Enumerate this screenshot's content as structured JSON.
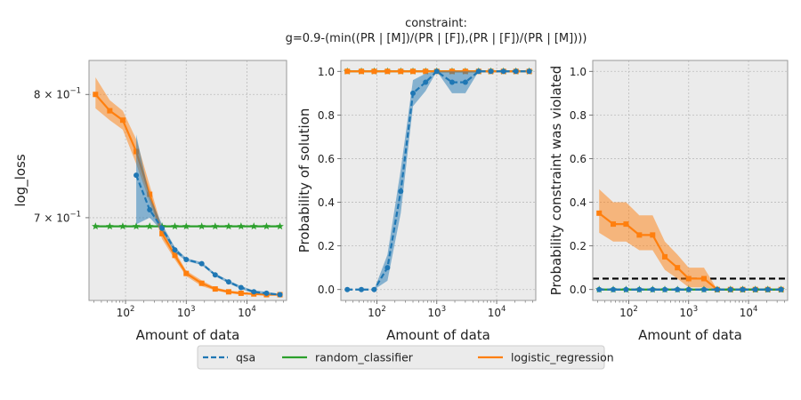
{
  "title_lines": [
    "constraint:",
    "g=0.9-(min((PR | [M])/(PR | [F]),(PR | [F])/(PR | [M])))"
  ],
  "colors": {
    "qsa": "#1f77b4",
    "random_classifier": "#2ca02c",
    "logistic_regression": "#ff7f0e",
    "threshold": "#000000"
  },
  "legend": [
    {
      "key": "qsa",
      "label": "qsa",
      "dash": true
    },
    {
      "key": "random_classifier",
      "label": "random_classifier",
      "dash": false
    },
    {
      "key": "logistic_regression",
      "label": "logistic_regression",
      "dash": false
    }
  ],
  "chart_data": [
    {
      "type": "line",
      "xscale": "log",
      "yscale": "log",
      "xlabel": "Amount of data",
      "ylabel": "log_loss",
      "xlim": [
        25,
        45000
      ],
      "ylim": [
        0.64,
        0.83
      ],
      "xticks": [
        {
          "v": 100,
          "b": "10",
          "e": "2"
        },
        {
          "v": 1000,
          "b": "10",
          "e": "3"
        },
        {
          "v": 10000,
          "b": "10",
          "e": "4"
        }
      ],
      "yticks": [
        {
          "v": 0.7,
          "b": "7 × 10",
          "e": "−1"
        },
        {
          "v": 0.8,
          "b": "8 × 10",
          "e": "−1"
        }
      ],
      "series": [
        {
          "key": "random_classifier",
          "marker": "star",
          "x": [
            32,
            55,
            90,
            150,
            250,
            400,
            650,
            1000,
            1800,
            3000,
            5000,
            8000,
            13000,
            21000,
            35000
          ],
          "y": [
            0.6935,
            0.6935,
            0.6935,
            0.6935,
            0.6935,
            0.6935,
            0.6935,
            0.6935,
            0.6935,
            0.6935,
            0.6935,
            0.6935,
            0.6935,
            0.6935,
            0.6935
          ]
        },
        {
          "key": "logistic_regression",
          "marker": "square",
          "x": [
            32,
            55,
            90,
            150,
            250,
            400,
            650,
            1000,
            1800,
            3000,
            5000,
            8000,
            13000,
            21000,
            35000
          ],
          "y": [
            0.8,
            0.786,
            0.778,
            0.752,
            0.718,
            0.688,
            0.672,
            0.659,
            0.652,
            0.648,
            0.646,
            0.645,
            0.6445,
            0.644,
            0.644
          ],
          "lo": [
            0.788,
            0.778,
            0.77,
            0.742,
            0.712,
            0.684,
            0.669,
            0.657,
            0.65,
            0.647,
            0.645,
            0.644,
            0.644,
            0.6435,
            0.6435
          ],
          "hi": [
            0.815,
            0.795,
            0.786,
            0.762,
            0.725,
            0.692,
            0.675,
            0.661,
            0.654,
            0.649,
            0.647,
            0.646,
            0.645,
            0.6445,
            0.6445
          ]
        },
        {
          "key": "qsa",
          "marker": "circle",
          "dash": true,
          "x": [
            150,
            250,
            400,
            650,
            1000,
            1800,
            3000,
            5000,
            8000,
            13000,
            21000,
            35000
          ],
          "y": [
            0.733,
            0.706,
            0.692,
            0.676,
            0.669,
            0.666,
            0.658,
            0.653,
            0.649,
            0.646,
            0.645,
            0.644
          ],
          "lo": [
            0.695,
            0.7,
            0.69,
            0.674,
            0.668,
            0.665,
            0.657,
            0.652,
            0.648,
            0.645,
            0.644,
            0.6435
          ],
          "hi": [
            0.766,
            0.716,
            0.695,
            0.678,
            0.67,
            0.667,
            0.659,
            0.654,
            0.65,
            0.647,
            0.646,
            0.6445
          ]
        }
      ]
    },
    {
      "type": "line",
      "xscale": "log",
      "yscale": "linear",
      "xlabel": "Amount of data",
      "ylabel": "Probability of solution",
      "xlim": [
        25,
        45000
      ],
      "ylim": [
        -0.05,
        1.05
      ],
      "xticks": [
        {
          "v": 100,
          "b": "10",
          "e": "2"
        },
        {
          "v": 1000,
          "b": "10",
          "e": "3"
        },
        {
          "v": 10000,
          "b": "10",
          "e": "4"
        }
      ],
      "yticks": [
        {
          "v": 0.0,
          "t": "0.0"
        },
        {
          "v": 0.2,
          "t": "0.2"
        },
        {
          "v": 0.4,
          "t": "0.4"
        },
        {
          "v": 0.6,
          "t": "0.6"
        },
        {
          "v": 0.8,
          "t": "0.8"
        },
        {
          "v": 1.0,
          "t": "1.0"
        }
      ],
      "series": [
        {
          "key": "random_classifier",
          "marker": "star",
          "x": [
            32,
            55,
            90,
            150,
            250,
            400,
            650,
            1000,
            1800,
            3000,
            5000,
            8000,
            13000,
            21000,
            35000
          ],
          "y": [
            1,
            1,
            1,
            1,
            1,
            1,
            1,
            1,
            1,
            1,
            1,
            1,
            1,
            1,
            1
          ]
        },
        {
          "key": "logistic_regression",
          "marker": "square",
          "x": [
            32,
            55,
            90,
            150,
            250,
            400,
            650,
            1000,
            1800,
            3000,
            5000,
            8000,
            13000,
            21000,
            35000
          ],
          "y": [
            1,
            1,
            1,
            1,
            1,
            1,
            1,
            1,
            1,
            1,
            1,
            1,
            1,
            1,
            1
          ]
        },
        {
          "key": "qsa",
          "marker": "circle",
          "dash": true,
          "x": [
            32,
            55,
            90,
            150,
            250,
            400,
            650,
            1000,
            1800,
            3000,
            5000,
            8000,
            13000,
            21000,
            35000
          ],
          "y": [
            0,
            0,
            0,
            0.1,
            0.45,
            0.9,
            0.95,
            1.0,
            0.95,
            0.95,
            1.0,
            1.0,
            1.0,
            1.0,
            1.0
          ],
          "lo": [
            0,
            0,
            0,
            0.04,
            0.35,
            0.84,
            0.91,
            1.0,
            0.9,
            0.9,
            1.0,
            1.0,
            1.0,
            1.0,
            1.0
          ],
          "hi": [
            0,
            0,
            0,
            0.16,
            0.55,
            0.96,
            0.99,
            1.0,
            1.0,
            1.0,
            1.0,
            1.0,
            1.0,
            1.0,
            1.0
          ]
        }
      ]
    },
    {
      "type": "line",
      "xscale": "log",
      "yscale": "linear",
      "xlabel": "Amount of data",
      "ylabel": "Probability constraint was violated",
      "xlim": [
        25,
        45000
      ],
      "ylim": [
        -0.05,
        1.05
      ],
      "threshold": 0.05,
      "xticks": [
        {
          "v": 100,
          "b": "10",
          "e": "2"
        },
        {
          "v": 1000,
          "b": "10",
          "e": "3"
        },
        {
          "v": 10000,
          "b": "10",
          "e": "4"
        }
      ],
      "yticks": [
        {
          "v": 0.0,
          "t": "0.0"
        },
        {
          "v": 0.2,
          "t": "0.2"
        },
        {
          "v": 0.4,
          "t": "0.4"
        },
        {
          "v": 0.6,
          "t": "0.6"
        },
        {
          "v": 0.8,
          "t": "0.8"
        },
        {
          "v": 1.0,
          "t": "1.0"
        }
      ],
      "series": [
        {
          "key": "logistic_regression",
          "marker": "square",
          "x": [
            32,
            55,
            90,
            150,
            250,
            400,
            650,
            1000,
            1800,
            3000,
            5000,
            8000,
            13000,
            21000,
            35000
          ],
          "y": [
            0.35,
            0.3,
            0.3,
            0.25,
            0.25,
            0.15,
            0.1,
            0.05,
            0.05,
            0,
            0,
            0,
            0,
            0,
            0
          ],
          "lo": [
            0.26,
            0.22,
            0.22,
            0.18,
            0.18,
            0.09,
            0.05,
            0.01,
            0.01,
            0,
            0,
            0,
            0,
            0,
            0
          ],
          "hi": [
            0.46,
            0.4,
            0.4,
            0.34,
            0.34,
            0.22,
            0.16,
            0.1,
            0.1,
            0,
            0,
            0,
            0,
            0,
            0
          ]
        },
        {
          "key": "random_classifier",
          "marker": "star",
          "x": [
            32,
            55,
            90,
            150,
            250,
            400,
            650,
            1000,
            1800,
            3000,
            5000,
            8000,
            13000,
            21000,
            35000
          ],
          "y": [
            0,
            0,
            0,
            0,
            0,
            0,
            0,
            0,
            0,
            0,
            0,
            0,
            0,
            0,
            0
          ]
        },
        {
          "key": "qsa",
          "marker": "circle",
          "dash": true,
          "x": [
            32,
            55,
            90,
            150,
            250,
            400,
            650,
            1000,
            1800,
            3000,
            5000,
            8000,
            13000,
            21000,
            35000
          ],
          "y": [
            0,
            0,
            0,
            0,
            0,
            0,
            0,
            0,
            0,
            0,
            0,
            0,
            0,
            0,
            0
          ]
        }
      ]
    }
  ]
}
